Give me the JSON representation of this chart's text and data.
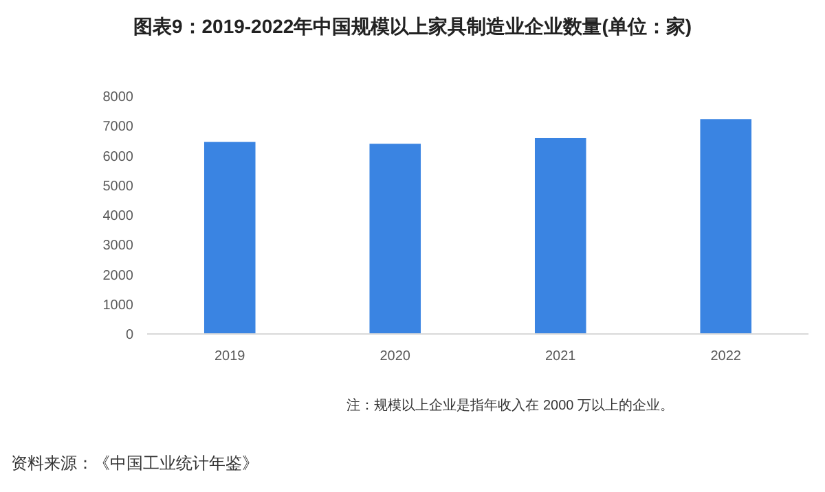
{
  "chart_data": {
    "type": "bar",
    "title": "图表9：2019-2022年中国规模以上家具制造业企业数量(单位：家)",
    "categories": [
      "2019",
      "2020",
      "2021",
      "2022"
    ],
    "values": [
      6460,
      6400,
      6590,
      7230
    ],
    "color": "#3a84e2",
    "ylim": [
      0,
      8000
    ],
    "yticks": [
      0,
      1000,
      2000,
      3000,
      4000,
      5000,
      6000,
      7000,
      8000
    ],
    "grid": false,
    "annotations": [
      "注：规模以上企业是指年收入在 2000 万以上的企业。",
      "资料来源：《中国工业统计年鉴》"
    ]
  }
}
